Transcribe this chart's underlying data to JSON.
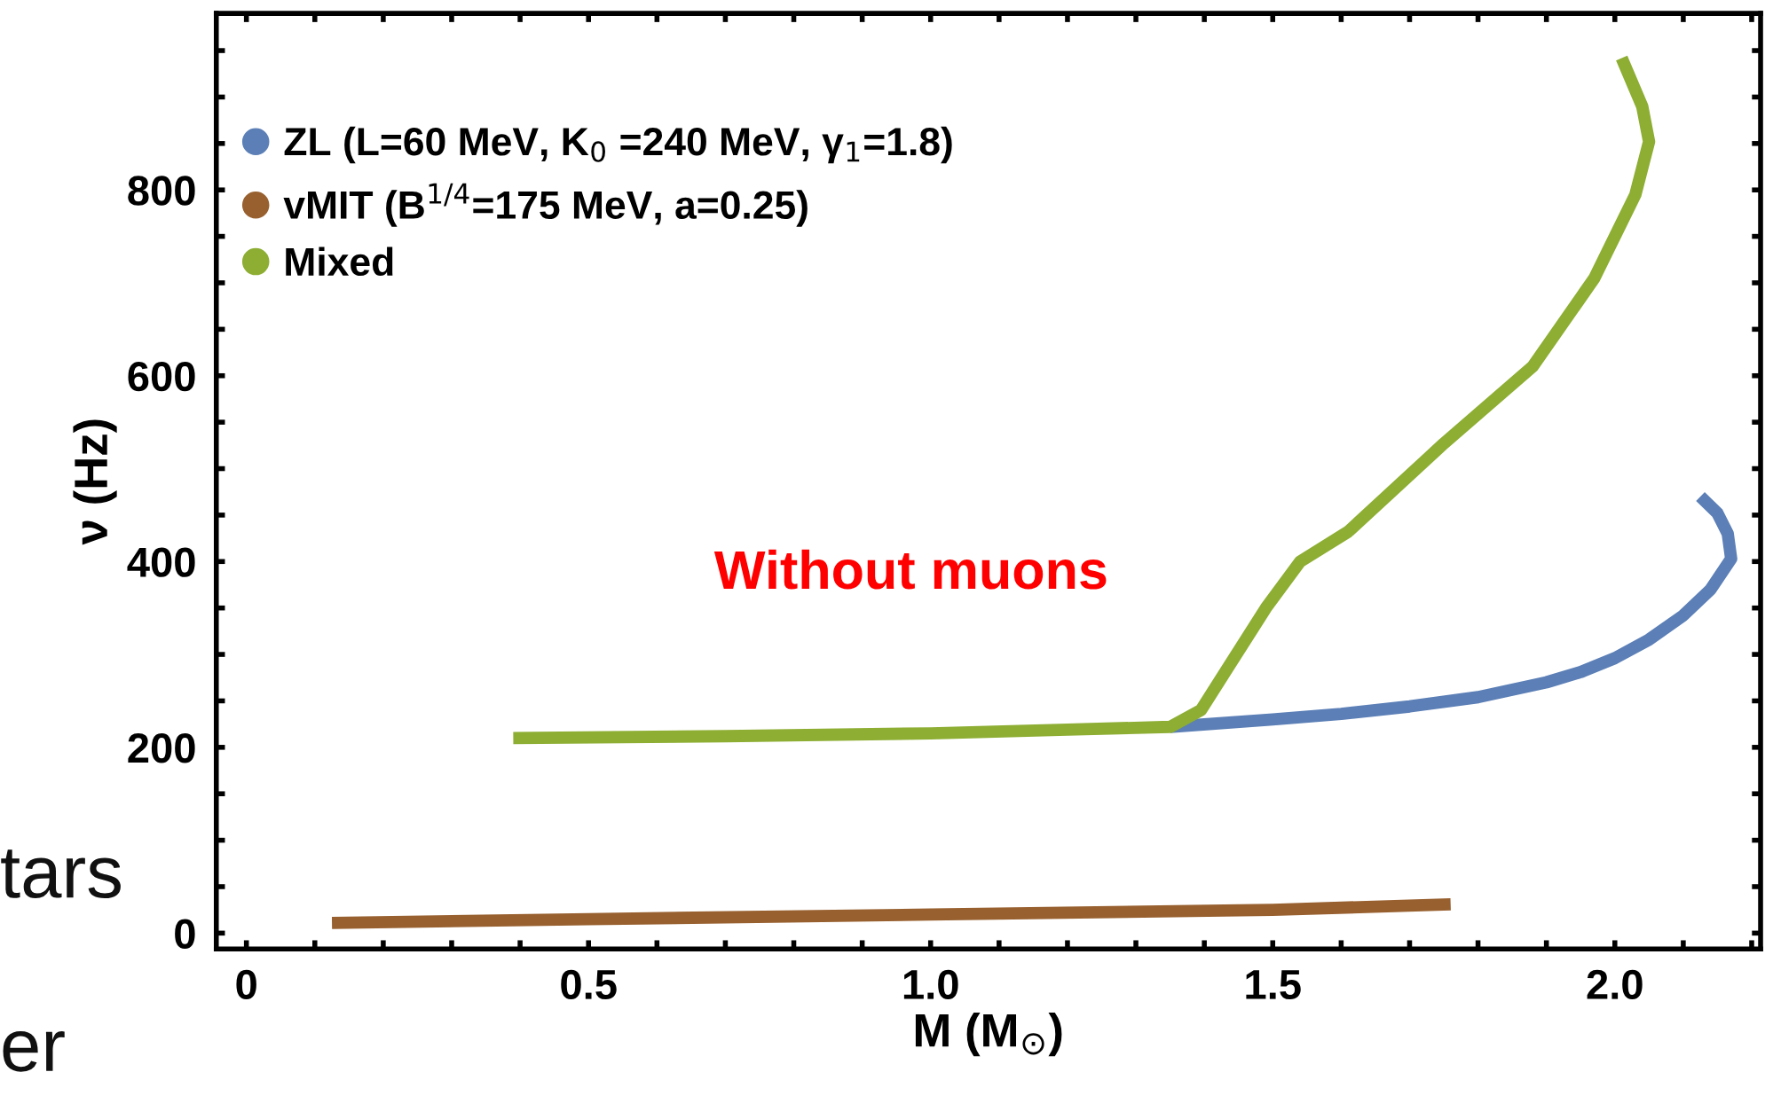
{
  "chart_data": {
    "type": "line",
    "xlabel": "M (M$_{⊙}$)",
    "ylabel": "ν (Hz)",
    "xlim": [
      -0.044,
      2.213
    ],
    "ylim": [
      -17,
      990
    ],
    "xticks": [
      0,
      {
        "value": 0.1,
        "label": null
      },
      {
        "value": 0.2,
        "label": null
      },
      {
        "value": 0.3,
        "label": null
      },
      {
        "value": 0.4,
        "label": null
      },
      0.5,
      {
        "value": 0.6,
        "label": null
      },
      {
        "value": 0.7,
        "label": null
      },
      {
        "value": 0.8,
        "label": null
      },
      {
        "value": 0.9,
        "label": null
      },
      {
        "value": 1.0,
        "label": "1.0"
      },
      {
        "value": 1.1,
        "label": null
      },
      {
        "value": 1.2,
        "label": null
      },
      {
        "value": 1.3,
        "label": null
      },
      {
        "value": 1.4,
        "label": null
      },
      1.5,
      {
        "value": 1.6,
        "label": null
      },
      {
        "value": 1.7,
        "label": null
      },
      {
        "value": 1.8,
        "label": null
      },
      {
        "value": 1.9,
        "label": null
      },
      {
        "value": 2.0,
        "label": "2.0"
      },
      {
        "value": 2.1,
        "label": null
      },
      {
        "value": 2.2,
        "label": null
      }
    ],
    "yticks": [
      0,
      {
        "value": 50,
        "label": null
      },
      {
        "value": 100,
        "label": null
      },
      {
        "value": 150,
        "label": null
      },
      200,
      {
        "value": 250,
        "label": null
      },
      {
        "value": 300,
        "label": null
      },
      {
        "value": 350,
        "label": null
      },
      400,
      {
        "value": 450,
        "label": null
      },
      {
        "value": 500,
        "label": null
      },
      {
        "value": 550,
        "label": null
      },
      600,
      {
        "value": 650,
        "label": null
      },
      {
        "value": 700,
        "label": null
      },
      {
        "value": 750,
        "label": null
      },
      800,
      {
        "value": 850,
        "label": null
      },
      {
        "value": 900,
        "label": null
      },
      {
        "value": 950,
        "label": null
      }
    ],
    "grid": false,
    "legend": "top left",
    "series": [
      {
        "name": "ZL (L=60 MeV, K$_{0}$ =240 MeV, γ$_{1}$=1.8)",
        "color": "#5b7fb6",
        "x": [
          1.35,
          1.5,
          1.6,
          1.7,
          1.8,
          1.9,
          1.95,
          2.0,
          2.05,
          2.1,
          2.14,
          2.17,
          2.165,
          2.15,
          2.125
        ],
        "values": [
          222,
          230,
          236,
          244,
          254,
          270,
          281,
          296,
          316,
          342,
          370,
          403,
          430,
          452,
          470
        ]
      },
      {
        "name": "vMIT (B$^{1/4}$=175 MeV, a=0.25)",
        "color": "#98602f",
        "x": [
          0.125,
          0.5,
          1.0,
          1.5,
          1.76
        ],
        "values": [
          11,
          15,
          20,
          25,
          31
        ]
      },
      {
        "name": "Mixed",
        "color": "#8dae33",
        "x": [
          0.39,
          0.7,
          1.0,
          1.2,
          1.35,
          1.395,
          1.49,
          1.54,
          1.61,
          1.75,
          1.88,
          1.97,
          2.03,
          2.05,
          2.04,
          2.01
        ],
        "values": [
          210,
          212,
          215,
          219,
          222,
          240,
          350,
          400,
          432,
          527,
          610,
          705,
          795,
          852,
          890,
          942
        ]
      }
    ],
    "annotations": [
      "Without muons",
      "tars",
      "er"
    ]
  }
}
